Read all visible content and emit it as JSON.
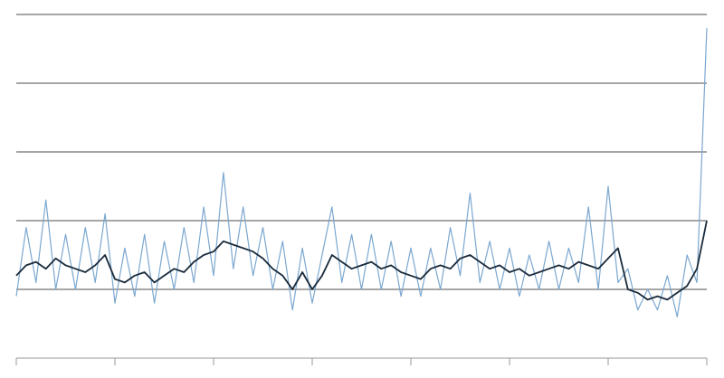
{
  "chart_data": {
    "type": "line",
    "x": [
      0,
      0.1,
      0.2,
      0.3,
      0.4,
      0.5,
      0.6,
      0.7,
      0.8,
      0.9,
      1,
      1.1,
      1.2,
      1.3,
      1.4,
      1.5,
      1.6,
      1.7,
      1.8,
      1.9,
      2,
      2.1,
      2.2,
      2.3,
      2.4,
      2.5,
      2.6,
      2.7,
      2.8,
      2.9,
      3,
      3.1,
      3.2,
      3.3,
      3.4,
      3.5,
      3.6,
      3.7,
      3.8,
      3.9,
      4,
      4.1,
      4.2,
      4.3,
      4.4,
      4.5,
      4.6,
      4.7,
      4.8,
      4.9,
      5,
      5.1,
      5.2,
      5.3,
      5.4,
      5.5,
      5.6,
      5.7,
      5.8,
      5.9,
      6,
      6.1,
      6.2,
      6.3,
      6.4,
      6.5,
      6.6,
      6.7,
      6.8,
      6.9,
      7
    ],
    "series": [
      {
        "color": "#7ba7cf",
        "values": [
          0.9,
          1.9,
          1.1,
          2.3,
          1.0,
          1.8,
          1.0,
          1.9,
          1.1,
          2.1,
          0.8,
          1.6,
          0.9,
          1.8,
          0.8,
          1.7,
          1.0,
          1.9,
          1.1,
          2.2,
          1.2,
          2.7,
          1.3,
          2.2,
          1.2,
          1.9,
          1.0,
          1.7,
          0.7,
          1.6,
          0.8,
          1.5,
          2.2,
          1.1,
          1.8,
          1.0,
          1.8,
          1.0,
          1.7,
          0.9,
          1.6,
          0.9,
          1.6,
          1.0,
          1.9,
          1.2,
          2.4,
          1.1,
          1.7,
          1.0,
          1.6,
          0.9,
          1.5,
          1.0,
          1.7,
          1.0,
          1.6,
          1.1,
          2.2,
          1.0,
          2.5,
          1.1,
          1.3,
          0.7,
          1.0,
          0.7,
          1.2,
          0.6,
          1.5,
          1.1,
          4.8
        ]
      },
      {
        "color": "#1a2b3c",
        "values": [
          1.2,
          1.35,
          1.4,
          1.3,
          1.45,
          1.35,
          1.3,
          1.25,
          1.35,
          1.5,
          1.15,
          1.1,
          1.2,
          1.25,
          1.1,
          1.2,
          1.3,
          1.25,
          1.4,
          1.5,
          1.55,
          1.7,
          1.65,
          1.6,
          1.55,
          1.45,
          1.3,
          1.2,
          1.0,
          1.25,
          1.0,
          1.2,
          1.5,
          1.4,
          1.3,
          1.35,
          1.4,
          1.3,
          1.35,
          1.25,
          1.2,
          1.15,
          1.3,
          1.35,
          1.3,
          1.45,
          1.5,
          1.4,
          1.3,
          1.35,
          1.25,
          1.3,
          1.2,
          1.25,
          1.3,
          1.35,
          1.3,
          1.4,
          1.35,
          1.3,
          1.45,
          1.6,
          1.0,
          0.95,
          0.85,
          0.9,
          0.85,
          0.95,
          1.05,
          1.3,
          2.0
        ]
      }
    ],
    "xlim": [
      0,
      7
    ],
    "xticks": [
      0,
      1,
      2,
      3,
      4,
      5,
      6,
      7
    ],
    "ylim": [
      0,
      5
    ],
    "yticks": [
      0,
      1,
      2,
      3,
      4,
      5
    ],
    "grid": true
  }
}
